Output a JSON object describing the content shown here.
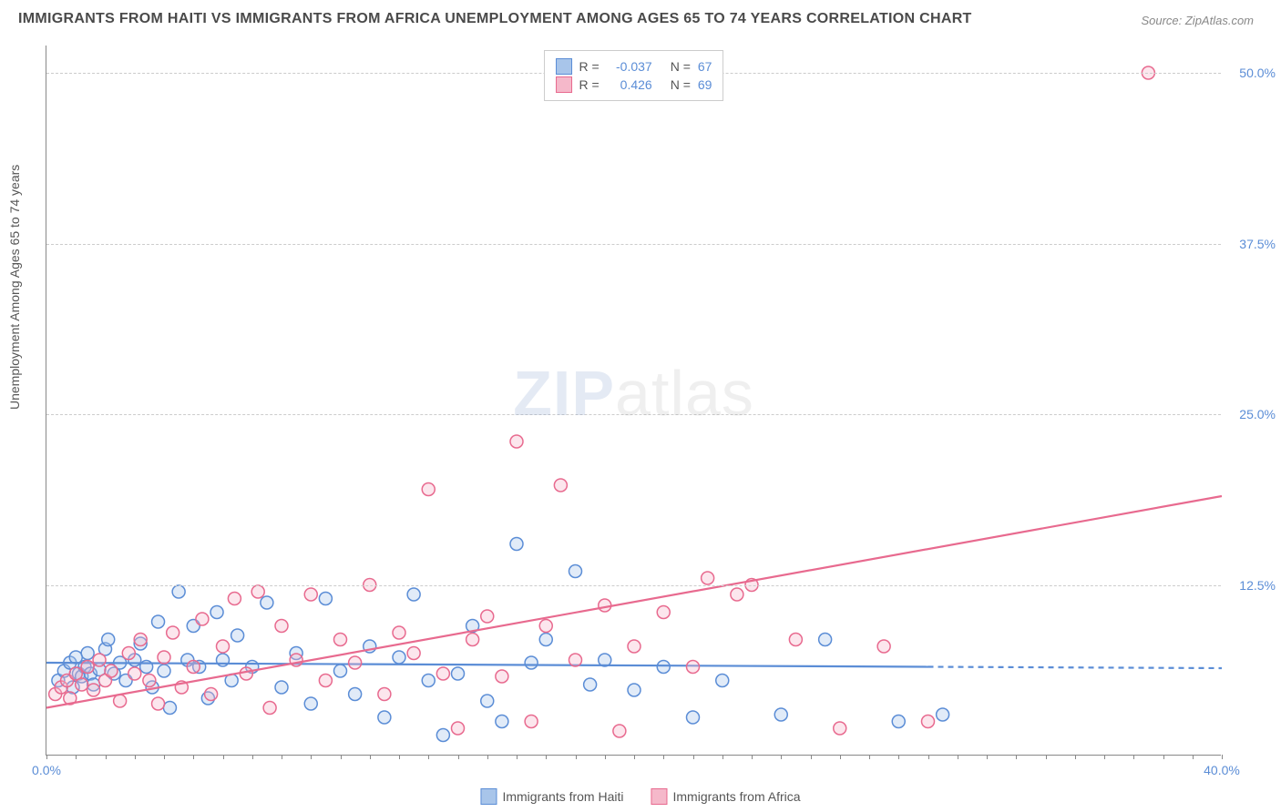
{
  "title": "IMMIGRANTS FROM HAITI VS IMMIGRANTS FROM AFRICA UNEMPLOYMENT AMONG AGES 65 TO 74 YEARS CORRELATION CHART",
  "source": "Source: ZipAtlas.com",
  "y_axis_label": "Unemployment Among Ages 65 to 74 years",
  "watermark": {
    "part1": "ZIP",
    "part2": "atlas"
  },
  "chart": {
    "type": "scatter",
    "xlim": [
      0,
      40
    ],
    "ylim": [
      0,
      52
    ],
    "x_ticks_minor_step": 1,
    "x_tick_labels": [
      {
        "pos": 0,
        "label": "0.0%"
      },
      {
        "pos": 40,
        "label": "40.0%"
      }
    ],
    "y_tick_labels": [
      {
        "pos": 12.5,
        "label": "12.5%"
      },
      {
        "pos": 25.0,
        "label": "25.0%"
      },
      {
        "pos": 37.5,
        "label": "37.5%"
      },
      {
        "pos": 50.0,
        "label": "50.0%"
      }
    ],
    "grid_color": "#cccccc",
    "background_color": "#ffffff",
    "marker_radius": 7,
    "marker_stroke_width": 1.5,
    "marker_fill_opacity": 0.35,
    "series": [
      {
        "name": "Immigrants from Haiti",
        "color_stroke": "#5b8dd6",
        "color_fill": "#a8c5ea",
        "R": "-0.037",
        "N": "67",
        "trend": {
          "x1": 0,
          "y1": 6.8,
          "x2": 30,
          "y2": 6.5,
          "dash_from_x": 30,
          "x3": 40,
          "y3": 6.4,
          "width": 2.2
        },
        "points": [
          [
            0.4,
            5.5
          ],
          [
            0.6,
            6.2
          ],
          [
            0.8,
            6.8
          ],
          [
            0.9,
            5.0
          ],
          [
            1.0,
            7.2
          ],
          [
            1.1,
            6.0
          ],
          [
            1.2,
            5.8
          ],
          [
            1.3,
            6.5
          ],
          [
            1.4,
            7.5
          ],
          [
            1.5,
            6.0
          ],
          [
            1.6,
            5.2
          ],
          [
            1.8,
            6.3
          ],
          [
            2.0,
            7.8
          ],
          [
            2.1,
            8.5
          ],
          [
            2.3,
            6.0
          ],
          [
            2.5,
            6.8
          ],
          [
            2.7,
            5.5
          ],
          [
            3.0,
            7.0
          ],
          [
            3.2,
            8.2
          ],
          [
            3.4,
            6.5
          ],
          [
            3.6,
            5.0
          ],
          [
            3.8,
            9.8
          ],
          [
            4.0,
            6.2
          ],
          [
            4.2,
            3.5
          ],
          [
            4.5,
            12.0
          ],
          [
            4.8,
            7.0
          ],
          [
            5.0,
            9.5
          ],
          [
            5.2,
            6.5
          ],
          [
            5.5,
            4.2
          ],
          [
            5.8,
            10.5
          ],
          [
            6.0,
            7.0
          ],
          [
            6.3,
            5.5
          ],
          [
            6.5,
            8.8
          ],
          [
            7.0,
            6.5
          ],
          [
            7.5,
            11.2
          ],
          [
            8.0,
            5.0
          ],
          [
            8.5,
            7.5
          ],
          [
            9.0,
            3.8
          ],
          [
            9.5,
            11.5
          ],
          [
            10.0,
            6.2
          ],
          [
            10.5,
            4.5
          ],
          [
            11.0,
            8.0
          ],
          [
            11.5,
            2.8
          ],
          [
            12.0,
            7.2
          ],
          [
            12.5,
            11.8
          ],
          [
            13.0,
            5.5
          ],
          [
            13.5,
            1.5
          ],
          [
            14.0,
            6.0
          ],
          [
            14.5,
            9.5
          ],
          [
            15.0,
            4.0
          ],
          [
            15.5,
            2.5
          ],
          [
            16.0,
            15.5
          ],
          [
            16.5,
            6.8
          ],
          [
            17.0,
            8.5
          ],
          [
            18.0,
            13.5
          ],
          [
            18.5,
            5.2
          ],
          [
            19.0,
            7.0
          ],
          [
            20.0,
            4.8
          ],
          [
            21.0,
            6.5
          ],
          [
            22.0,
            2.8
          ],
          [
            23.0,
            5.5
          ],
          [
            25.0,
            3.0
          ],
          [
            26.5,
            8.5
          ],
          [
            29.0,
            2.5
          ],
          [
            30.5,
            3.0
          ]
        ]
      },
      {
        "name": "Immigrants from Africa",
        "color_stroke": "#e86a8f",
        "color_fill": "#f5b8ca",
        "R": "0.426",
        "N": "69",
        "trend": {
          "x1": 0,
          "y1": 3.5,
          "x2": 40,
          "y2": 19.0,
          "width": 2.2
        },
        "points": [
          [
            0.3,
            4.5
          ],
          [
            0.5,
            5.0
          ],
          [
            0.7,
            5.5
          ],
          [
            0.8,
            4.2
          ],
          [
            1.0,
            6.0
          ],
          [
            1.2,
            5.2
          ],
          [
            1.4,
            6.5
          ],
          [
            1.6,
            4.8
          ],
          [
            1.8,
            7.0
          ],
          [
            2.0,
            5.5
          ],
          [
            2.2,
            6.2
          ],
          [
            2.5,
            4.0
          ],
          [
            2.8,
            7.5
          ],
          [
            3.0,
            6.0
          ],
          [
            3.2,
            8.5
          ],
          [
            3.5,
            5.5
          ],
          [
            3.8,
            3.8
          ],
          [
            4.0,
            7.2
          ],
          [
            4.3,
            9.0
          ],
          [
            4.6,
            5.0
          ],
          [
            5.0,
            6.5
          ],
          [
            5.3,
            10.0
          ],
          [
            5.6,
            4.5
          ],
          [
            6.0,
            8.0
          ],
          [
            6.4,
            11.5
          ],
          [
            6.8,
            6.0
          ],
          [
            7.2,
            12.0
          ],
          [
            7.6,
            3.5
          ],
          [
            8.0,
            9.5
          ],
          [
            8.5,
            7.0
          ],
          [
            9.0,
            11.8
          ],
          [
            9.5,
            5.5
          ],
          [
            10.0,
            8.5
          ],
          [
            10.5,
            6.8
          ],
          [
            11.0,
            12.5
          ],
          [
            11.5,
            4.5
          ],
          [
            12.0,
            9.0
          ],
          [
            12.5,
            7.5
          ],
          [
            13.0,
            19.5
          ],
          [
            13.5,
            6.0
          ],
          [
            14.0,
            2.0
          ],
          [
            14.5,
            8.5
          ],
          [
            15.0,
            10.2
          ],
          [
            15.5,
            5.8
          ],
          [
            16.0,
            23.0
          ],
          [
            16.5,
            2.5
          ],
          [
            17.0,
            9.5
          ],
          [
            17.5,
            19.8
          ],
          [
            18.0,
            7.0
          ],
          [
            19.0,
            11.0
          ],
          [
            19.5,
            1.8
          ],
          [
            20.0,
            8.0
          ],
          [
            21.0,
            10.5
          ],
          [
            22.0,
            6.5
          ],
          [
            22.5,
            13.0
          ],
          [
            23.5,
            11.8
          ],
          [
            24.0,
            12.5
          ],
          [
            25.5,
            8.5
          ],
          [
            27.0,
            2.0
          ],
          [
            28.5,
            8.0
          ],
          [
            30.0,
            2.5
          ],
          [
            37.5,
            50.0
          ]
        ]
      }
    ]
  },
  "legend_top": [
    {
      "swatch_fill": "#a8c5ea",
      "swatch_stroke": "#5b8dd6",
      "r_label": "R =",
      "r_val": "-0.037",
      "n_label": "N =",
      "n_val": "67"
    },
    {
      "swatch_fill": "#f5b8ca",
      "swatch_stroke": "#e86a8f",
      "r_label": "R =",
      "r_val": "0.426",
      "n_label": "N =",
      "n_val": "69"
    }
  ],
  "legend_bottom": [
    {
      "swatch_fill": "#a8c5ea",
      "swatch_stroke": "#5b8dd6",
      "label": "Immigrants from Haiti"
    },
    {
      "swatch_fill": "#f5b8ca",
      "swatch_stroke": "#e86a8f",
      "label": "Immigrants from Africa"
    }
  ]
}
